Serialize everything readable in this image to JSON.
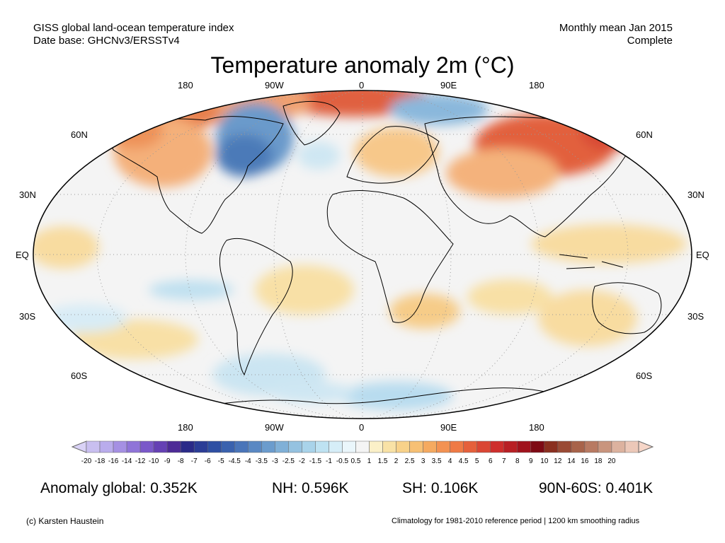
{
  "header": {
    "line1_left": "GISS global land-ocean temperature index",
    "line2_left": "Date base: GHCNv3/ERSSTv4",
    "line1_right": "Monthly mean Jan 2015",
    "line2_right": "Complete"
  },
  "title": "Temperature anomaly 2m (°C)",
  "lon_labels_top": [
    "180",
    "90W",
    "0",
    "90E",
    "180"
  ],
  "lon_labels_bottom": [
    "180",
    "90W",
    "0",
    "90E",
    "180"
  ],
  "lat_labels": [
    "60N",
    "30N",
    "EQ",
    "30S",
    "60S"
  ],
  "colorbar": {
    "ticks": [
      "-20",
      "-18",
      "-16",
      "-14",
      "-12",
      "-10",
      "-9",
      "-8",
      "-7",
      "-6",
      "-5",
      "-4.5",
      "-4",
      "-3.5",
      "-3",
      "-2.5",
      "-2",
      "-1.5",
      "-1",
      "-0.5",
      "0.5",
      "1",
      "1.5",
      "2",
      "2.5",
      "3",
      "3.5",
      "4",
      "4.5",
      "5",
      "6",
      "7",
      "8",
      "9",
      "10",
      "12",
      "14",
      "16",
      "18",
      "20"
    ],
    "colors": [
      "#c9bff0",
      "#b9acec",
      "#a590e3",
      "#8f74d8",
      "#7a58c9",
      "#6540b4",
      "#4d2a96",
      "#2a2a88",
      "#2b3d96",
      "#2e4fa3",
      "#3a62ae",
      "#4a75b9",
      "#5a88c3",
      "#6b9ccd",
      "#80b0d7",
      "#95c2e0",
      "#a9d3ea",
      "#bee2f2",
      "#d6eef8",
      "#eaf6fb",
      "#f4f4f4",
      "#fbf0c8",
      "#f9e2a6",
      "#f8d28a",
      "#f7c074",
      "#f5aa60",
      "#f39252",
      "#ef7a45",
      "#e5603b",
      "#da4634",
      "#ce2e2c",
      "#b81f24",
      "#a0121c",
      "#7e0a14",
      "#8a2f1f",
      "#9a4a34",
      "#a8634a",
      "#b87a62",
      "#c9957e",
      "#dcb29f",
      "#ecc8b8"
    ]
  },
  "stats": {
    "global": "Anomaly global: 0.352K",
    "nh": "NH: 0.596K",
    "sh": "SH: 0.106K",
    "arctic": "90N-60S: 0.401K"
  },
  "footer": {
    "left": "(c) Karsten Haustein",
    "right": "Climatology for 1981-2010 reference period | 1200 km smoothing radius"
  }
}
